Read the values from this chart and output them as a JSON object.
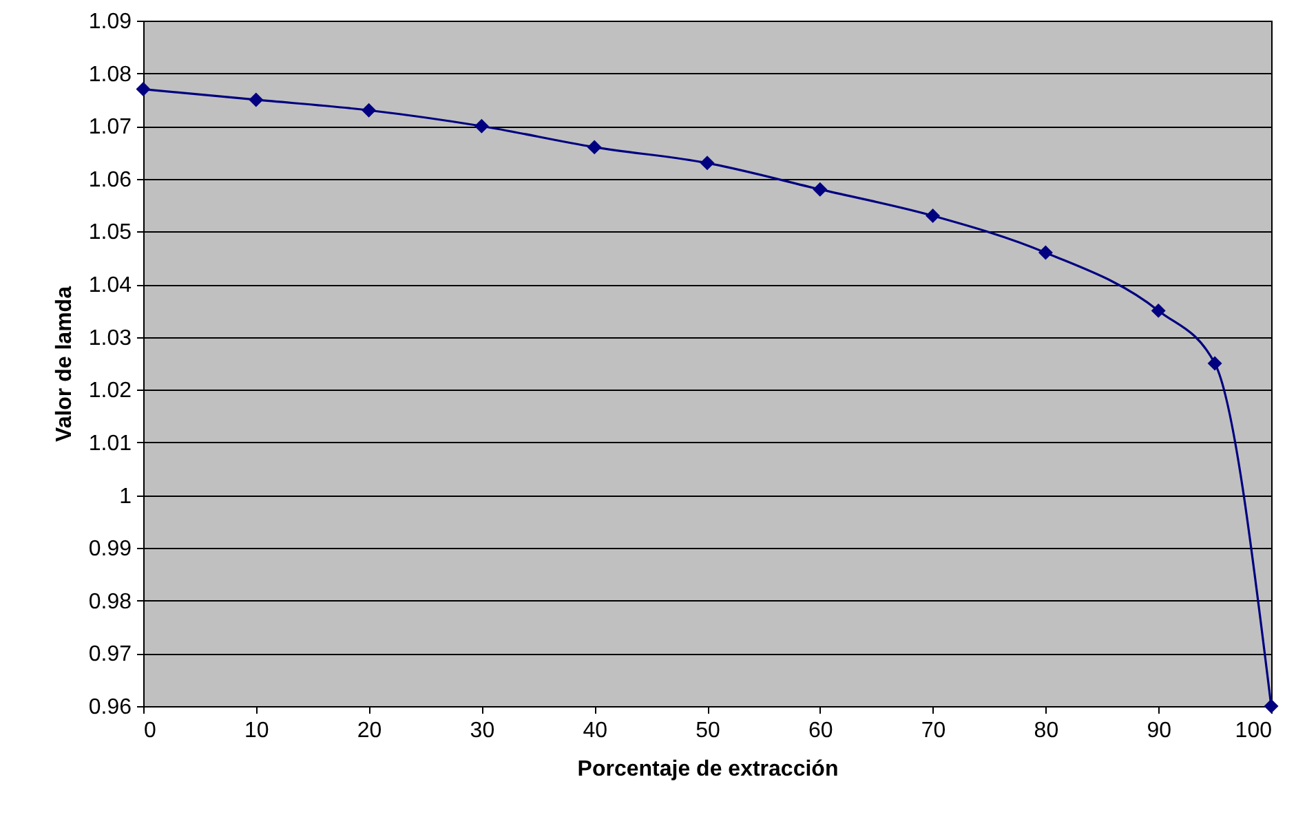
{
  "chart_data": {
    "type": "line",
    "xlabel": "Porcentaje de extracción",
    "ylabel": "Valor de lamda",
    "x": [
      0,
      10,
      20,
      30,
      40,
      50,
      60,
      70,
      80,
      90,
      95,
      100
    ],
    "series": [
      {
        "color": "#000080",
        "values": [
          1.077,
          1.075,
          1.073,
          1.07,
          1.066,
          1.063,
          1.058,
          1.053,
          1.046,
          1.035,
          1.025,
          0.96
        ]
      }
    ],
    "xlim": [
      0,
      100
    ],
    "xticks": [
      0,
      10,
      20,
      30,
      40,
      50,
      60,
      70,
      80,
      90,
      100
    ],
    "ylim": [
      0.96,
      1.09
    ],
    "yticks": [
      0.96,
      0.97,
      0.98,
      0.99,
      1,
      1.01,
      1.02,
      1.03,
      1.04,
      1.05,
      1.06,
      1.07,
      1.08,
      1.09
    ],
    "grid": "y",
    "marker": "diamond",
    "line_style": "solid"
  }
}
